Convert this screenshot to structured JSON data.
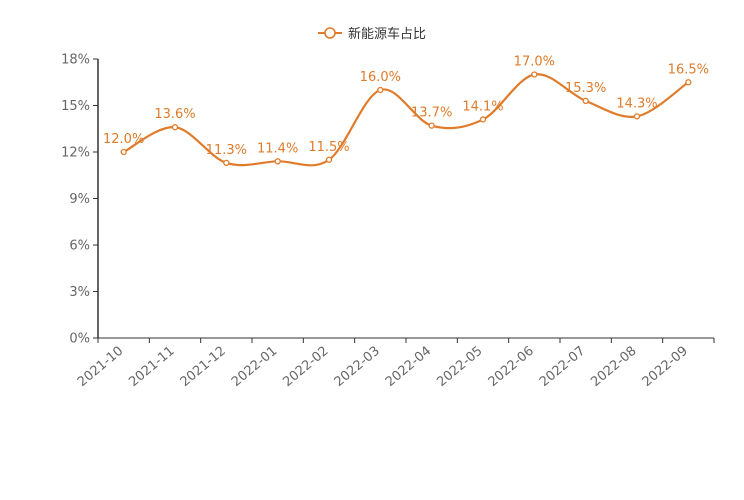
{
  "chart_data": {
    "type": "line",
    "title": "",
    "xlabel": "",
    "ylabel": "",
    "categories": [
      "2021-10",
      "2021-11",
      "2021-12",
      "2022-01",
      "2022-02",
      "2022-03",
      "2022-04",
      "2022-05",
      "2022-06",
      "2022-07",
      "2022-08",
      "2022-09"
    ],
    "series": [
      {
        "name": "新能源车占比",
        "values": [
          12.0,
          13.6,
          11.3,
          11.4,
          11.5,
          16.0,
          13.7,
          14.1,
          17.0,
          15.3,
          14.3,
          16.5
        ],
        "value_labels": [
          "12.0%",
          "13.6%",
          "11.3%",
          "11.4%",
          "11.5%",
          "16.0%",
          "13.7%",
          "14.1%",
          "17.0%",
          "15.3%",
          "14.3%",
          "16.5%"
        ],
        "color": "#e07b2a"
      }
    ],
    "ylim": [
      0,
      18
    ],
    "yticks": [
      0,
      3,
      6,
      9,
      12,
      15,
      18
    ],
    "ytick_labels": [
      "0%",
      "3%",
      "6%",
      "9%",
      "12%",
      "15%",
      "18%"
    ],
    "grid": false,
    "legend_position": "top-center",
    "smooth": true
  }
}
